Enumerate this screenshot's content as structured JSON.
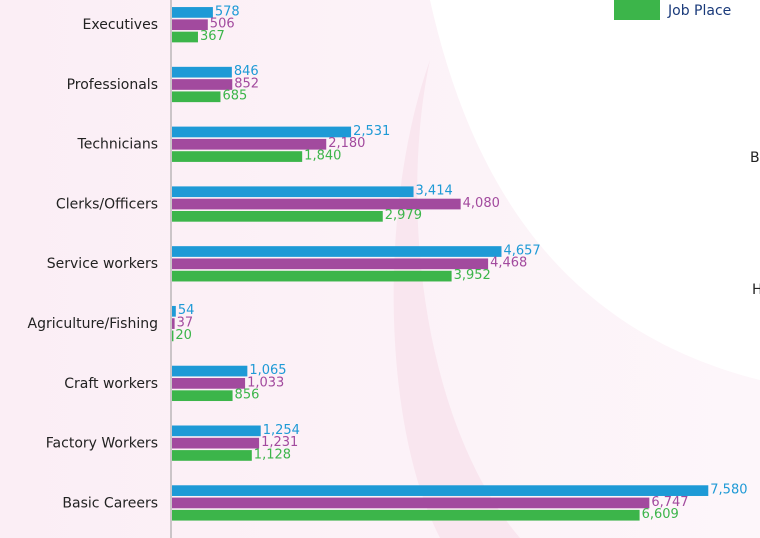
{
  "chart_data": {
    "type": "hbar",
    "categories": [
      "Executives",
      "Professionals",
      "Technicians",
      "Clerks/Officers",
      "Service workers",
      "Agriculture/Fishing",
      "Craft workers",
      "Factory Workers",
      "Basic Careers"
    ],
    "series": [
      {
        "color": "#1e9ad6",
        "values": [
          578,
          846,
          2531,
          3414,
          4657,
          54,
          1065,
          1254,
          7580
        ],
        "value_labels": [
          "578",
          "846",
          "2,531",
          "3,414",
          "4,657",
          "54",
          "1,065",
          "1,254",
          "7,580"
        ]
      },
      {
        "color": "#a24a9e",
        "values": [
          506,
          852,
          2180,
          4080,
          4468,
          37,
          1033,
          1231,
          6747
        ],
        "value_labels": [
          "506",
          "852",
          "2,180",
          "4,080",
          "4,468",
          "37",
          "1,033",
          "1,231",
          "6,747"
        ]
      },
      {
        "name": "Job Place",
        "color": "#3cb54a",
        "values": [
          367,
          685,
          1840,
          2979,
          3952,
          20,
          856,
          1128,
          6609
        ],
        "value_labels": [
          "367",
          "685",
          "1,840",
          "2,979",
          "3,952",
          "20",
          "856",
          "1,128",
          "6,609"
        ]
      }
    ],
    "xlim": [
      0,
      8000
    ],
    "annotations": [
      "Ba",
      "H"
    ]
  }
}
